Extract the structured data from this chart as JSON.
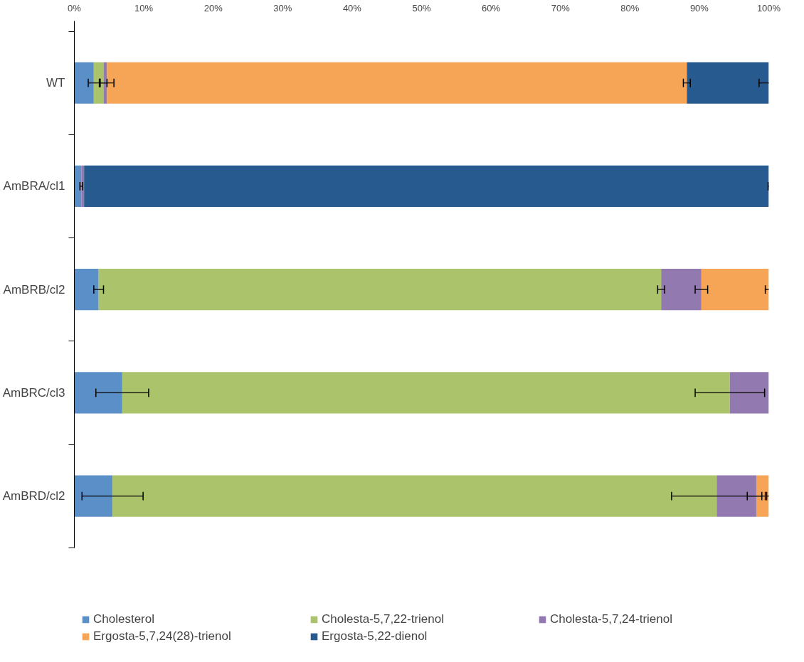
{
  "chart_data": {
    "type": "bar",
    "orientation": "horizontal",
    "stacked": true,
    "categories": [
      "WT",
      "AmBRA/cl1",
      "AmBRB/cl2",
      "AmBRC/cl3",
      "AmBRD/cl2"
    ],
    "series": [
      {
        "name": "Cholesterol",
        "color": "#5b8fc7",
        "values": [
          2.8,
          1.0,
          3.5,
          6.9,
          5.5
        ],
        "errors": [
          0.8,
          0.2,
          0.7,
          3.8,
          4.4
        ]
      },
      {
        "name": "Cholesta-5,7,22-trienol",
        "color": "#abc36b",
        "values": [
          1.4,
          0,
          81.0,
          87.5,
          87.0
        ],
        "errors": [
          0.5,
          null,
          0.5,
          5.0,
          6.5
        ]
      },
      {
        "name": "Cholesta-5,7,24-trienol",
        "color": "#9279b0",
        "values": [
          0.5,
          0.4,
          5.8,
          5.6,
          5.7
        ],
        "errors": [
          1.0,
          null,
          0.9,
          null,
          1.3
        ]
      },
      {
        "name": "Ergosta-5,7,24(28)-trienol",
        "color": "#f6a556",
        "values": [
          83.5,
          0,
          9.7,
          0,
          1.8
        ],
        "errors": [
          0.5,
          null,
          0.5,
          null,
          0.3
        ]
      },
      {
        "name": "Ergosta-5,22-dienol",
        "color": "#275b8f",
        "values": [
          11.8,
          98.6,
          0,
          0,
          0
        ],
        "errors": [
          1.4,
          0.1,
          null,
          null,
          null
        ]
      }
    ],
    "xlim": [
      0,
      100
    ],
    "xticks": [
      {
        "value": 0,
        "label": "0%"
      },
      {
        "value": 10,
        "label": "10%"
      },
      {
        "value": 20,
        "label": "20%"
      },
      {
        "value": 30,
        "label": "30%"
      },
      {
        "value": 40,
        "label": "40%"
      },
      {
        "value": 50,
        "label": "50%"
      },
      {
        "value": 60,
        "label": "60%"
      },
      {
        "value": 70,
        "label": "70%"
      },
      {
        "value": 80,
        "label": "80%"
      },
      {
        "value": 90,
        "label": "90%"
      },
      {
        "value": 100,
        "label": "100%"
      }
    ],
    "grid": false,
    "legend": "bottom"
  }
}
